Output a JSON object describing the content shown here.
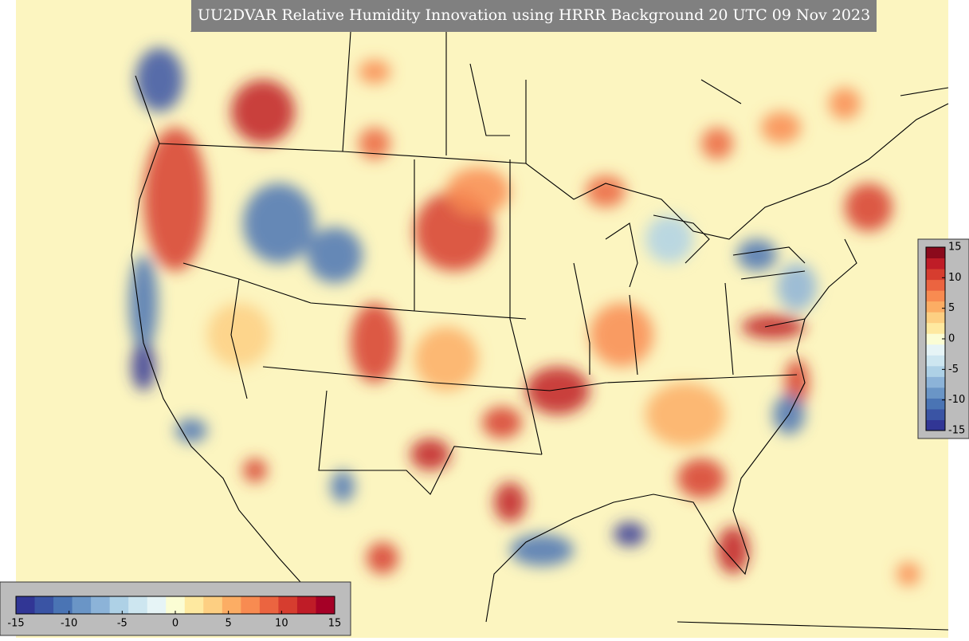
{
  "title": "UU2DVAR Relative Humidity Innovation using HRRR Background 20 UTC 09 Nov 2023",
  "colorbars": [
    {
      "orientation": "horizontal",
      "lim": [
        -15,
        15
      ],
      "ticks": [
        -15,
        -10,
        -5,
        0,
        5,
        10,
        15
      ],
      "colors": [
        "#313695",
        "#3a54a4",
        "#4a74b4",
        "#6a95c6",
        "#8cb3d8",
        "#aed1e6",
        "#cde6f0",
        "#e6f4f6",
        "#fbfdd4",
        "#fee9a0",
        "#fdcf82",
        "#fcad64",
        "#f88b51",
        "#eb6440",
        "#d63d2f",
        "#bf1c27",
        "#a50026"
      ]
    },
    {
      "orientation": "vertical",
      "lim": [
        -15,
        15
      ],
      "ticks": [
        -15,
        -10,
        -5,
        0,
        5,
        10,
        15
      ],
      "colors": [
        "#313695",
        "#3a54a4",
        "#4a74b4",
        "#6a95c6",
        "#8cb3d8",
        "#aed1e6",
        "#cde6f0",
        "#e6f4f6",
        "#fbfdd4",
        "#fee9a0",
        "#fdcf82",
        "#fcad64",
        "#f88b51",
        "#eb6440",
        "#d63d2f",
        "#bf1c27",
        "#8b0a1c"
      ]
    }
  ]
}
